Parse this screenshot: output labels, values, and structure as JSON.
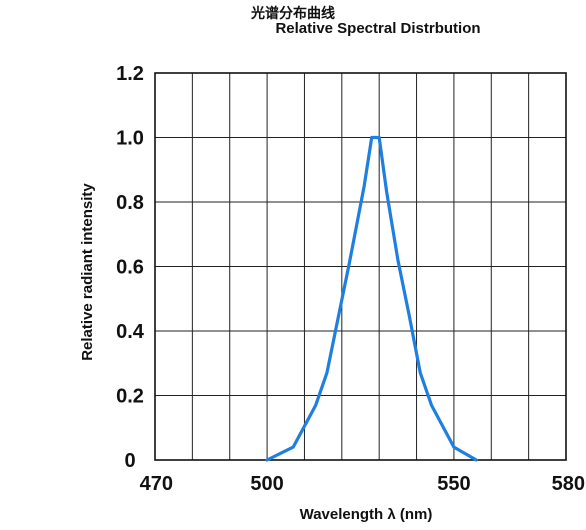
{
  "chart_data": {
    "type": "line",
    "title": "光谱分布曲线",
    "subtitle": "Relative Spectral Distrbution",
    "xlabel": "Wavelength  λ (nm)",
    "ylabel": "Relative radiant intensity",
    "xlim": [
      470,
      580
    ],
    "ylim": [
      0,
      1.2
    ],
    "x_ticks": [
      470,
      500,
      550,
      580
    ],
    "y_ticks": [
      0,
      0.2,
      0.4,
      0.6,
      0.8,
      1.0,
      1.2
    ],
    "y_tick_labels": [
      "0",
      "0.2",
      "0.4",
      "0.6",
      "0.8",
      "1.0",
      "1.2"
    ],
    "grid": true,
    "grid_columns": 11,
    "grid_rows": 6,
    "line_color": "#1f7fe0",
    "series": [
      {
        "x": [
          500,
          507,
          513,
          516,
          519,
          522,
          526,
          528,
          530,
          532,
          535,
          538,
          541,
          544,
          550,
          556
        ],
        "values": [
          0,
          0.04,
          0.17,
          0.27,
          0.44,
          0.61,
          0.85,
          1.0,
          1.0,
          0.83,
          0.62,
          0.45,
          0.27,
          0.17,
          0.04,
          0
        ]
      }
    ]
  }
}
